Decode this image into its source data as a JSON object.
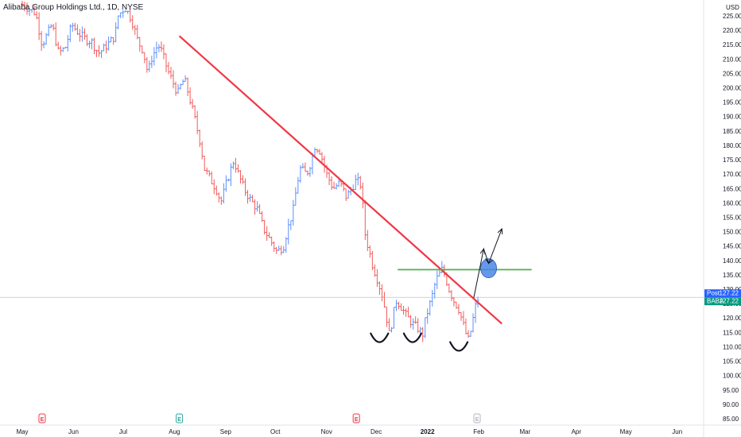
{
  "chart_title": "Alibaba Group Holdings Ltd., 1D, NYSE",
  "currency": "USD",
  "price_tags": [
    {
      "label": "Post",
      "value": "127.22",
      "color": "#2962ff"
    },
    {
      "label": "BABA",
      "value": "127.22",
      "color": "#089981"
    }
  ],
  "chart_data": {
    "type": "ohlc",
    "title": "Alibaba Group Holdings Ltd., 1D, NYSE",
    "ylabel": "USD",
    "ylim": [
      83,
      231
    ],
    "y_ticks": [
      85,
      90,
      95,
      100,
      105,
      110,
      115,
      120,
      125,
      130,
      135,
      140,
      145,
      150,
      155,
      160,
      165,
      170,
      175,
      180,
      185,
      190,
      195,
      200,
      205,
      210,
      215,
      220,
      225
    ],
    "x_ticks": [
      {
        "label": "May",
        "day": 0
      },
      {
        "label": "Jun",
        "day": 31
      },
      {
        "label": "Jul",
        "day": 61
      },
      {
        "label": "Aug",
        "day": 92
      },
      {
        "label": "Sep",
        "day": 123
      },
      {
        "label": "Oct",
        "day": 153
      },
      {
        "label": "Nov",
        "day": 184
      },
      {
        "label": "Dec",
        "day": 214
      },
      {
        "label": "2022",
        "day": 245
      },
      {
        "label": "Feb",
        "day": 276
      },
      {
        "label": "Mar",
        "day": 304
      },
      {
        "label": "Apr",
        "day": 335
      },
      {
        "label": "May",
        "day": 365
      },
      {
        "label": "Jun",
        "day": 396
      }
    ],
    "x_range_days": [
      0,
      412
    ],
    "close_path": [
      [
        0,
        229
      ],
      [
        8,
        226
      ],
      [
        12,
        215
      ],
      [
        18,
        222
      ],
      [
        22,
        212
      ],
      [
        26,
        214
      ],
      [
        30,
        222
      ],
      [
        34,
        219
      ],
      [
        38,
        217
      ],
      [
        42,
        216
      ],
      [
        46,
        212
      ],
      [
        50,
        214
      ],
      [
        56,
        218
      ],
      [
        58,
        225
      ],
      [
        62,
        228
      ],
      [
        64,
        226
      ],
      [
        66,
        224
      ],
      [
        70,
        216
      ],
      [
        73,
        213
      ],
      [
        76,
        205
      ],
      [
        78,
        210
      ],
      [
        82,
        215
      ],
      [
        84,
        213
      ],
      [
        88,
        206
      ],
      [
        91,
        202
      ],
      [
        94,
        198
      ],
      [
        96,
        201
      ],
      [
        98,
        203
      ],
      [
        100,
        199
      ],
      [
        104,
        190
      ],
      [
        108,
        180
      ],
      [
        110,
        172
      ],
      [
        114,
        168
      ],
      [
        118,
        164
      ],
      [
        120,
        160
      ],
      [
        124,
        168
      ],
      [
        128,
        175
      ],
      [
        130,
        171
      ],
      [
        134,
        165
      ],
      [
        138,
        161
      ],
      [
        142,
        158
      ],
      [
        146,
        151
      ],
      [
        150,
        147
      ],
      [
        154,
        143
      ],
      [
        158,
        145
      ],
      [
        160,
        150
      ],
      [
        164,
        158
      ],
      [
        166,
        166
      ],
      [
        168,
        172
      ],
      [
        172,
        170
      ],
      [
        175,
        175
      ],
      [
        177,
        180
      ],
      [
        180,
        178
      ],
      [
        184,
        170
      ],
      [
        188,
        165
      ],
      [
        192,
        167
      ],
      [
        196,
        162
      ],
      [
        198,
        164
      ],
      [
        202,
        168
      ],
      [
        205,
        166
      ],
      [
        207,
        150
      ],
      [
        209,
        145
      ],
      [
        212,
        138
      ],
      [
        215,
        133
      ],
      [
        218,
        127
      ],
      [
        220,
        121
      ],
      [
        222,
        114
      ],
      [
        224,
        120
      ],
      [
        226,
        126
      ],
      [
        228,
        125
      ],
      [
        232,
        121
      ],
      [
        236,
        118
      ],
      [
        240,
        116
      ],
      [
        242,
        114
      ],
      [
        244,
        120
      ],
      [
        246,
        124
      ],
      [
        248,
        128
      ],
      [
        250,
        133
      ],
      [
        254,
        137
      ],
      [
        256,
        134
      ],
      [
        258,
        130
      ],
      [
        261,
        126
      ],
      [
        264,
        123
      ],
      [
        266,
        119
      ],
      [
        268,
        115
      ],
      [
        270,
        112
      ],
      [
        272,
        118
      ],
      [
        274,
        124
      ],
      [
        276,
        127.2
      ]
    ],
    "annotations": [
      {
        "type": "trendline",
        "color": "#f23645",
        "points": [
          [
            95,
            218
          ],
          [
            290,
            118
          ]
        ]
      },
      {
        "type": "horizontal_segment",
        "color": "#4caf50",
        "y": 136.8,
        "x": [
          227,
          308
        ]
      },
      {
        "type": "ellipse",
        "color": "#4a86e8",
        "center": [
          282,
          137.3
        ]
      },
      {
        "type": "arrow",
        "color": "#131722",
        "points": [
          [
            273,
            127
          ],
          [
            279,
            144
          ],
          [
            282,
            139
          ],
          [
            290,
            151
          ]
        ]
      },
      {
        "type": "smile",
        "color": "#131722",
        "centers": [
          [
            216,
            113
          ],
          [
            236,
            113
          ],
          [
            264,
            110
          ]
        ]
      }
    ],
    "earnings_markers": [
      {
        "label": "E",
        "day": 12,
        "color": "#f23645"
      },
      {
        "label": "E",
        "day": 95,
        "color": "#26a69a"
      },
      {
        "label": "E",
        "day": 202,
        "color": "#f23645"
      },
      {
        "label": "E",
        "day": 275,
        "color": "#b2b5be"
      }
    ],
    "grid": false
  }
}
